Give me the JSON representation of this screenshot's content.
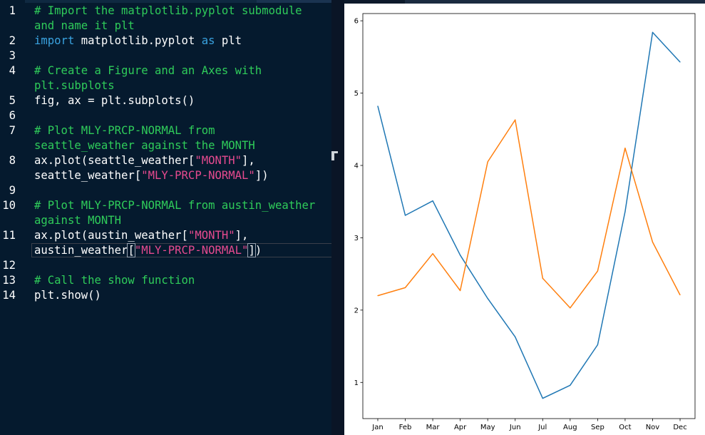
{
  "editor": {
    "lines": [
      {
        "num": "1",
        "parts": [
          {
            "t": "# Import the matplotlib.pyplot submodule",
            "c": "cmt"
          }
        ]
      },
      {
        "num": "",
        "parts": [
          {
            "t": "and name it plt",
            "c": "cmt"
          }
        ]
      },
      {
        "num": "2",
        "parts": [
          {
            "t": "import",
            "c": "kw"
          },
          {
            "t": " matplotlib.pyplot ",
            "c": ""
          },
          {
            "t": "as",
            "c": "kw"
          },
          {
            "t": " plt",
            "c": ""
          }
        ]
      },
      {
        "num": "3",
        "parts": []
      },
      {
        "num": "4",
        "parts": [
          {
            "t": "# Create a Figure and an Axes with",
            "c": "cmt"
          }
        ]
      },
      {
        "num": "",
        "parts": [
          {
            "t": "plt.subplots",
            "c": "cmt"
          }
        ]
      },
      {
        "num": "5",
        "parts": [
          {
            "t": "fig, ax = plt.subplots()",
            "c": ""
          }
        ]
      },
      {
        "num": "6",
        "parts": []
      },
      {
        "num": "7",
        "parts": [
          {
            "t": "# Plot MLY-PRCP-NORMAL from",
            "c": "cmt"
          }
        ]
      },
      {
        "num": "",
        "parts": [
          {
            "t": "seattle_weather against the MONTH",
            "c": "cmt"
          }
        ]
      },
      {
        "num": "8",
        "parts": [
          {
            "t": "ax.plot(seattle_weather[",
            "c": ""
          },
          {
            "t": "\"MONTH\"",
            "c": "str"
          },
          {
            "t": "],",
            "c": ""
          }
        ]
      },
      {
        "num": "",
        "parts": [
          {
            "t": "seattle_weather[",
            "c": ""
          },
          {
            "t": "\"MLY-PRCP-NORMAL\"",
            "c": "str"
          },
          {
            "t": "])",
            "c": ""
          }
        ]
      },
      {
        "num": "9",
        "parts": []
      },
      {
        "num": "10",
        "parts": [
          {
            "t": "# Plot MLY-PRCP-NORMAL from austin_weather",
            "c": "cmt"
          }
        ]
      },
      {
        "num": "",
        "parts": [
          {
            "t": "against MONTH",
            "c": "cmt"
          }
        ]
      },
      {
        "num": "11",
        "parts": [
          {
            "t": "ax.plot(austin_weather[",
            "c": ""
          },
          {
            "t": "\"MONTH\"",
            "c": "str"
          },
          {
            "t": "],",
            "c": ""
          }
        ]
      },
      {
        "num": "",
        "parts": [
          {
            "t": "austin_weather",
            "c": ""
          },
          {
            "t": "[",
            "c": "hl"
          },
          {
            "t": "\"MLY-PRCP-NORMAL\"",
            "c": "str"
          },
          {
            "t": "]",
            "c": "hl"
          },
          {
            "t": ")",
            "c": ""
          }
        ]
      },
      {
        "num": "12",
        "parts": []
      },
      {
        "num": "13",
        "parts": [
          {
            "t": "# Call the show function",
            "c": "cmt"
          }
        ]
      },
      {
        "num": "14",
        "parts": [
          {
            "t": "plt.show()",
            "c": ""
          }
        ]
      }
    ]
  },
  "chart_data": {
    "type": "line",
    "categories": [
      "Jan",
      "Feb",
      "Mar",
      "Apr",
      "May",
      "Jun",
      "Jul",
      "Aug",
      "Sep",
      "Oct",
      "Nov",
      "Dec"
    ],
    "series": [
      {
        "values": [
          4.82,
          3.31,
          3.51,
          2.76,
          2.16,
          1.63,
          0.78,
          0.96,
          1.52,
          3.36,
          5.84,
          5.43
        ],
        "color": "#1f77b4"
      },
      {
        "values": [
          2.2,
          2.31,
          2.78,
          2.27,
          4.05,
          4.63,
          2.44,
          2.03,
          2.54,
          4.24,
          2.94,
          2.21
        ],
        "color": "#ff7f0e"
      }
    ],
    "yticks": [
      1,
      2,
      3,
      4,
      5,
      6
    ],
    "ylim": [
      0.5,
      6.1
    ],
    "title": "",
    "xlabel": "",
    "ylabel": "",
    "grid": false
  }
}
